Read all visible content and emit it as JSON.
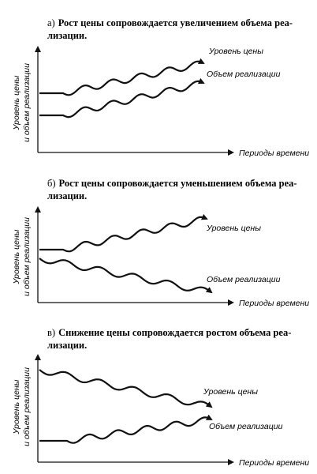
{
  "panels": [
    {
      "marker": "а)",
      "caption": [
        "Рост цены сопровождается увеличением объема реа-",
        "лизации."
      ],
      "y_label": [
        "Уровень цены",
        "и объем реализации"
      ],
      "x_label": "Периоды времени",
      "curves": [
        {
          "label": "Уровень цены"
        },
        {
          "label": "Объем реализации"
        }
      ]
    },
    {
      "marker": "б)",
      "caption": [
        "Рост цены сопровождается уменьшением объема реа-",
        "лизации."
      ],
      "y_label": [
        "Уровень цены",
        "и объем реализации"
      ],
      "x_label": "Периоды времени",
      "curves": [
        {
          "label": "Уровень цены"
        },
        {
          "label": "Объем реализации"
        }
      ]
    },
    {
      "marker": "в)",
      "caption": [
        "Снижение цены сопровождается ростом объема реа-",
        "лизации."
      ],
      "y_label": [
        "Уровень цены",
        "и объем реализации"
      ],
      "x_label": "Периоды времени",
      "curves": [
        {
          "label": "Уровень цены"
        },
        {
          "label": "Объем реализации"
        }
      ]
    }
  ]
}
